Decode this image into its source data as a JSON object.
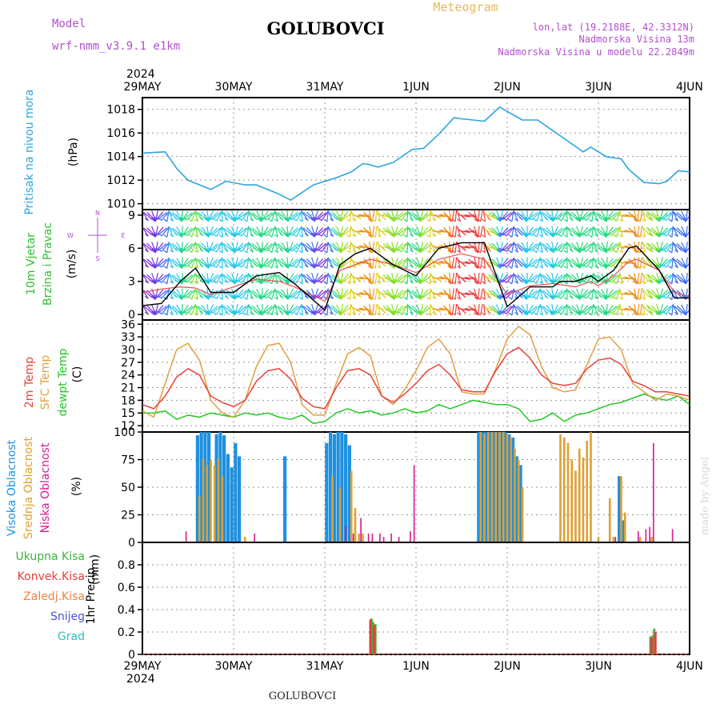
{
  "header": {
    "model_label": "Model",
    "model_name": "wrf-nmm_v3.9.1 e1km",
    "station": "GOLUBOVCI",
    "product": "Meteogram",
    "lonlat": "lon,lat (19.2188E, 42.3312N)",
    "elevation": "Nadmorska Visina 13m",
    "model_elevation": "Nadmorska Visina u modelu 22.2849m",
    "footer_station": "GOLUBOVCI",
    "credit": "made by Angel"
  },
  "time_axis": {
    "year": "2024",
    "ticks": [
      "29MAY",
      "30MAY",
      "31MAY",
      "1JUN",
      "2JUN",
      "3JUN",
      "4JUN"
    ],
    "hours": 144
  },
  "colors": {
    "pressure": "#2aa6e0",
    "wind_label": "#2ec02e",
    "temp2m": "#e8403c",
    "sfc": "#e0a040",
    "dewpt": "#22c822",
    "high_cloud": "#1e90e0",
    "mid_cloud": "#e0a030",
    "low_cloud": "#d81890",
    "ukupna": "#3cb43c",
    "konvek": "#e83c3c",
    "zaledj": "#f08040",
    "snijeg": "#5050e0",
    "grad": "#30c0c0",
    "compass": "#b050d0",
    "title_gold": "#e8b860",
    "header_purple": "#b050d0"
  },
  "chart_data": [
    {
      "type": "line",
      "panel": "pressure",
      "ylabel_name": "Pritisak na nivou mora",
      "ylabel_unit": "(hPa)",
      "ylim": [
        1009.5,
        1019
      ],
      "yticks": [
        "1010",
        "1012",
        "1014",
        "1016",
        "1018"
      ],
      "x_hours": [
        0,
        6,
        9,
        12,
        18,
        22,
        27,
        30,
        36,
        39,
        45,
        51,
        55,
        58,
        60,
        62,
        66,
        71,
        74,
        78,
        82,
        84,
        90,
        94,
        100,
        104,
        108,
        112,
        116,
        118,
        122,
        126,
        128,
        132,
        136,
        138,
        141,
        144
      ],
      "series": [
        {
          "values": [
            1014.3,
            1014.4,
            1013.0,
            1012.0,
            1011.2,
            1011.9,
            1011.6,
            1011.6,
            1010.8,
            1010.3,
            1011.6,
            1012.2,
            1012.7,
            1013.4,
            1013.3,
            1013.1,
            1013.5,
            1014.6,
            1014.7,
            1015.9,
            1017.3,
            1017.2,
            1017.0,
            1018.2,
            1017.1,
            1017.1,
            1016.2,
            1015.3,
            1014.4,
            1014.8,
            1014.0,
            1013.8,
            1012.9,
            1011.8,
            1011.7,
            1011.9,
            1012.8,
            1012.7
          ]
        }
      ]
    },
    {
      "type": "line",
      "panel": "wind",
      "ylabel_name": "10m Vjetar",
      "ylabel_name2": "Brzina i Pravac",
      "ylabel_unit": "(m/s)",
      "ylim": [
        -0.5,
        9.5
      ],
      "yticks": [
        "0",
        "3",
        "6",
        "9"
      ],
      "x_hours": [
        0,
        5,
        10,
        14,
        18,
        24,
        30,
        36,
        40,
        48,
        52,
        56,
        60,
        66,
        72,
        78,
        84,
        90,
        96,
        102,
        108,
        110,
        114,
        118,
        120,
        124,
        128,
        130,
        136,
        140,
        144
      ],
      "series": [
        {
          "name": "speed",
          "values": [
            0.8,
            1.0,
            3.0,
            4.2,
            2.0,
            2.0,
            3.5,
            3.8,
            2.8,
            0.4,
            4.5,
            5.5,
            6.0,
            4.5,
            3.5,
            6.0,
            6.5,
            6.5,
            0.7,
            2.5,
            2.5,
            3.0,
            3.0,
            3.5,
            3.0,
            4.0,
            6.0,
            6.2,
            4.0,
            1.5,
            1.5
          ]
        },
        {
          "name": "gust",
          "values": [
            2.0,
            2.3,
            2.5,
            2.4,
            1.8,
            2.5,
            3.2,
            3.0,
            2.5,
            1.2,
            4.0,
            4.5,
            5.0,
            4.5,
            3.8,
            5.0,
            5.5,
            5.0,
            1.8,
            2.6,
            2.8,
            2.7,
            2.5,
            3.0,
            2.6,
            3.5,
            4.8,
            5.0,
            4.0,
            2.0,
            1.6
          ]
        }
      ],
      "compass": {
        "n": "N",
        "s": "S",
        "e": "E",
        "w": "W"
      }
    },
    {
      "type": "line",
      "panel": "temperature",
      "ylabel_lines": [
        "2m Temp",
        "SFC Temp",
        "dewpt Temp"
      ],
      "ylabel_unit": "(C)",
      "ylim": [
        10.5,
        37
      ],
      "yticks": [
        "12",
        "15",
        "18",
        "21",
        "24",
        "27",
        "30",
        "33",
        "36"
      ],
      "x_hours": [
        0,
        3,
        6,
        9,
        12,
        15,
        18,
        21,
        24,
        27,
        30,
        33,
        36,
        39,
        42,
        45,
        48,
        51,
        54,
        57,
        60,
        63,
        66,
        69,
        72,
        75,
        78,
        81,
        84,
        87,
        90,
        93,
        96,
        99,
        102,
        105,
        108,
        111,
        114,
        117,
        120,
        123,
        126,
        129,
        132,
        135,
        138,
        141,
        144
      ],
      "series": [
        {
          "name": "2m",
          "values": [
            17.0,
            16.0,
            19.0,
            23.5,
            25.5,
            24.0,
            19.0,
            17.5,
            16.5,
            18.0,
            22.5,
            25.0,
            25.5,
            23.0,
            18.5,
            16.5,
            16.0,
            21.0,
            25.0,
            25.5,
            24.0,
            19.0,
            17.5,
            19.5,
            22.0,
            25.0,
            26.5,
            24.0,
            20.5,
            20.0,
            20.0,
            25.0,
            29.0,
            30.5,
            28.0,
            24.0,
            22.0,
            21.5,
            22.0,
            25.5,
            27.5,
            28.0,
            26.5,
            22.5,
            21.5,
            20.0,
            20.0,
            19.5,
            19.0
          ]
        },
        {
          "name": "SFC",
          "values": [
            15.5,
            14.0,
            22.0,
            30.0,
            31.5,
            27.5,
            18.0,
            15.0,
            14.0,
            18.0,
            26.0,
            31.0,
            31.5,
            27.0,
            17.0,
            14.5,
            14.5,
            22.0,
            29.0,
            30.5,
            28.5,
            19.0,
            17.0,
            20.5,
            25.0,
            30.5,
            32.5,
            29.0,
            20.0,
            19.5,
            19.5,
            25.5,
            32.5,
            35.5,
            33.5,
            26.0,
            21.0,
            20.0,
            20.5,
            26.5,
            32.5,
            33.0,
            30.0,
            22.0,
            20.0,
            18.0,
            19.5,
            19.0,
            18.0
          ]
        },
        {
          "name": "dewpt",
          "values": [
            15.0,
            15.0,
            15.5,
            13.5,
            14.5,
            14.0,
            15.0,
            14.5,
            14.0,
            15.0,
            14.5,
            15.0,
            14.0,
            13.5,
            14.5,
            12.5,
            13.0,
            15.0,
            16.0,
            15.0,
            15.5,
            14.5,
            15.0,
            16.0,
            15.0,
            15.5,
            17.0,
            16.0,
            17.0,
            18.0,
            17.5,
            17.0,
            17.0,
            16.0,
            13.0,
            13.5,
            15.0,
            13.0,
            14.5,
            15.0,
            16.0,
            17.0,
            17.5,
            18.5,
            19.5,
            18.5,
            18.0,
            19.0,
            17.0
          ]
        }
      ]
    },
    {
      "type": "bar",
      "panel": "cloud",
      "ylabel_lines": [
        "Visoka Oblacnost",
        "Srednja Oblacnost",
        "Niska Oblacnost"
      ],
      "ylabel_unit": "(%)",
      "ylim": [
        0,
        100
      ],
      "yticks": [
        "0",
        "25",
        "50",
        "75",
        "100"
      ],
      "series": [
        {
          "name": "Visoka",
          "points": [
            [
              14.5,
              97
            ],
            [
              15.5,
              100
            ],
            [
              16.5,
              100
            ],
            [
              17.5,
              100
            ],
            [
              19.5,
              98
            ],
            [
              20.5,
              100
            ],
            [
              21.5,
              97
            ],
            [
              22.5,
              80
            ],
            [
              23.5,
              68
            ],
            [
              24.5,
              90
            ],
            [
              25.5,
              78
            ],
            [
              37.5,
              78
            ],
            [
              48.5,
              90
            ],
            [
              49.5,
              100
            ],
            [
              50.5,
              98
            ],
            [
              51.5,
              100
            ],
            [
              52.5,
              100
            ],
            [
              53.5,
              98
            ],
            [
              54.5,
              88
            ],
            [
              88.5,
              100
            ],
            [
              89.5,
              100
            ],
            [
              90.5,
              100
            ],
            [
              91.5,
              100
            ],
            [
              92.5,
              100
            ],
            [
              93.5,
              100
            ],
            [
              94.5,
              100
            ],
            [
              95.5,
              100
            ],
            [
              96.5,
              98
            ],
            [
              97.5,
              95
            ],
            [
              98.5,
              78
            ],
            [
              99.5,
              70
            ],
            [
              125.5,
              60
            ],
            [
              126.5,
              20
            ]
          ]
        },
        {
          "name": "Srednja",
          "points": [
            [
              15,
              42
            ],
            [
              16,
              76
            ],
            [
              17,
              70
            ],
            [
              18,
              75
            ],
            [
              19,
              70
            ],
            [
              20,
              76
            ],
            [
              21,
              60
            ],
            [
              27,
              5
            ],
            [
              50,
              60
            ],
            [
              52,
              50
            ],
            [
              55,
              65
            ],
            [
              56,
              31
            ],
            [
              57,
              8
            ],
            [
              58,
              8
            ],
            [
              89,
              100
            ],
            [
              90,
              98
            ],
            [
              91,
              100
            ],
            [
              92,
              100
            ],
            [
              93,
              100
            ],
            [
              94,
              100
            ],
            [
              95,
              100
            ],
            [
              96,
              98
            ],
            [
              97,
              95
            ],
            [
              98,
              85
            ],
            [
              99,
              75
            ],
            [
              100,
              50
            ],
            [
              110,
              98
            ],
            [
              111,
              95
            ],
            [
              112,
              90
            ],
            [
              113,
              75
            ],
            [
              114,
              65
            ],
            [
              115,
              85
            ],
            [
              116,
              77
            ],
            [
              117,
              92
            ],
            [
              118,
              100
            ],
            [
              120,
              5
            ],
            [
              123,
              40
            ],
            [
              124,
              5
            ],
            [
              126,
              60
            ],
            [
              127,
              27
            ],
            [
              131,
              5
            ],
            [
              134,
              5
            ]
          ]
        },
        {
          "name": "Niska",
          "points": [
            [
              11.5,
              10
            ],
            [
              29.5,
              8
            ],
            [
              53.5,
              15
            ],
            [
              55.5,
              8
            ],
            [
              57.5,
              22
            ],
            [
              59.5,
              8
            ],
            [
              60.5,
              8
            ],
            [
              62.5,
              8
            ],
            [
              63.5,
              5
            ],
            [
              65.5,
              8
            ],
            [
              67.5,
              5
            ],
            [
              70.5,
              10
            ],
            [
              71.5,
              70
            ],
            [
              124.5,
              5
            ],
            [
              130.5,
              10
            ],
            [
              132.5,
              12
            ],
            [
              133.5,
              14
            ],
            [
              134.5,
              90
            ],
            [
              139.5,
              12
            ]
          ]
        }
      ]
    },
    {
      "type": "bar",
      "panel": "precip",
      "legend": [
        "Ukupna Kisa",
        "Konvek.Kisa",
        "Zaledj.Kisa",
        "Snijeg",
        "Grad"
      ],
      "ylabel_name": "1hr Precip",
      "ylabel_unit": "(mm)",
      "ylim": [
        0,
        1.0
      ],
      "yticks": [
        "0",
        "0.2",
        "0.4",
        "0.6",
        "0.8"
      ],
      "series": [
        {
          "name": "Ukupna Kisa",
          "points": [
            [
              60.3,
              0.32
            ],
            [
              60.7,
              0.29
            ],
            [
              61.3,
              0.27
            ],
            [
              133.7,
              0.16
            ],
            [
              134.3,
              0.17
            ],
            [
              134.7,
              0.23
            ]
          ]
        },
        {
          "name": "Konvek.Kisa",
          "points": [
            [
              60.0,
              0.31
            ],
            [
              61.0,
              0.26
            ],
            [
              134.0,
              0.15
            ],
            [
              135.0,
              0.2
            ]
          ]
        }
      ]
    }
  ]
}
